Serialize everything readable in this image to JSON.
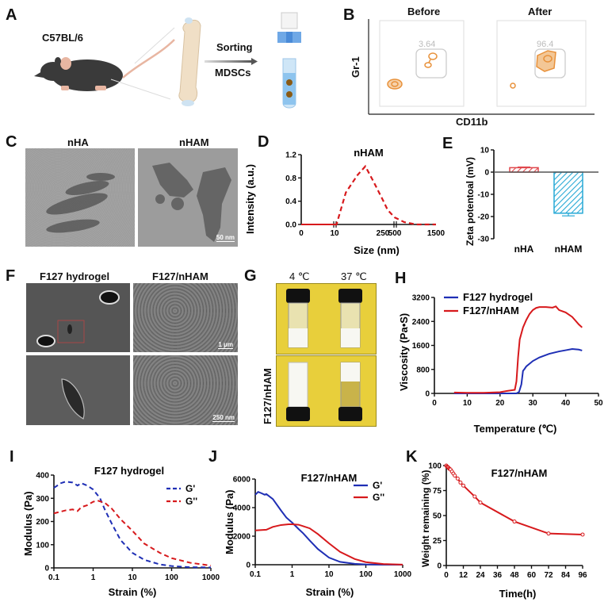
{
  "panels": {
    "A": {
      "label": "A",
      "strain": "C57BL/6",
      "arrow_top": "Sorting",
      "arrow_bottom": "MDSCs",
      "icons": [
        "mouse-illustration",
        "femur-bone-illustration",
        "cell-strainer-illustration",
        "test-tube-illustration"
      ]
    },
    "B": {
      "label": "B",
      "titles": [
        "Before",
        "After"
      ],
      "gate_values": [
        "3.64",
        "96.4"
      ],
      "ylabel": "Gr-1",
      "xlabel": "CD11b",
      "color": "#e8913a"
    },
    "C": {
      "label": "C",
      "titles": [
        "nHA",
        "nHAM"
      ],
      "scale_bar": "50 nm"
    },
    "D": {
      "label": "D"
    },
    "E": {
      "label": "E"
    },
    "F": {
      "label": "F",
      "titles": [
        "F127 hydrogel",
        "F127/nHAM"
      ],
      "scale_bars": [
        "1 μm",
        "250 nm"
      ]
    },
    "G": {
      "label": "G",
      "titles": [
        "4 ℃",
        "37 ℃"
      ],
      "side_label": "F127/nHAM"
    },
    "H": {
      "label": "H"
    },
    "I": {
      "label": "I"
    },
    "J": {
      "label": "J"
    },
    "K": {
      "label": "K"
    }
  },
  "chart_data": [
    {
      "id": "D",
      "type": "line",
      "title": "nHAM",
      "xlabel": "Size (nm)",
      "ylabel": "Intensity (a.u.)",
      "x_tick_labels": [
        "0",
        "10",
        "250",
        "500",
        "1500"
      ],
      "y_ticks": [
        0.0,
        0.4,
        0.8,
        1.2
      ],
      "y_tick_labels": [
        "0.0",
        "0.4",
        "0.8",
        "1.2"
      ],
      "ylim": [
        0,
        1.2
      ],
      "axis_breaks": true,
      "series": [
        {
          "name": "nHAM",
          "color": "#d7191c",
          "style": "dashed",
          "x": [
            0,
            10,
            12,
            60,
            120,
            160,
            200,
            250,
            350,
            500,
            700,
            1000,
            1500
          ],
          "y": [
            0,
            0,
            0,
            0.55,
            0.85,
            1.0,
            0.75,
            0.42,
            0.25,
            0.12,
            0.04,
            0.0,
            0.0
          ]
        }
      ]
    },
    {
      "id": "E",
      "type": "bar",
      "categories": [
        "nHA",
        "nHAM"
      ],
      "values": [
        2,
        -18.5
      ],
      "errors": [
        0.3,
        1.2
      ],
      "colors": [
        "#e0474c",
        "#27a9d6"
      ],
      "hatched": true,
      "ylabel": "Zeta potentoal (mV)",
      "ylim": [
        -30,
        10
      ],
      "y_ticks": [
        10,
        0,
        -10,
        -20,
        -30
      ],
      "y_tick_labels": [
        "10",
        "0",
        "-10",
        "-20",
        "-30"
      ]
    },
    {
      "id": "H",
      "type": "line",
      "xlabel": "Temperature (℃)",
      "ylabel": "Viscosity (Pa•S)",
      "xlim": [
        0,
        50
      ],
      "ylim": [
        0,
        3200
      ],
      "x_ticks": [
        0,
        10,
        20,
        30,
        40,
        50
      ],
      "x_tick_labels": [
        "0",
        "10",
        "20",
        "30",
        "40",
        "50"
      ],
      "y_ticks": [
        0,
        800,
        1600,
        2400,
        3200
      ],
      "y_tick_labels": [
        "0",
        "800",
        "1600",
        "2400",
        "3200"
      ],
      "legend": "top-left",
      "series": [
        {
          "name": "F127 hydrogel",
          "color": "#1f2fb5",
          "x": [
            6,
            10,
            20,
            25,
            25.8,
            26.5,
            27,
            27.5,
            28,
            30,
            32,
            35,
            38,
            40,
            42,
            44,
            45
          ],
          "y": [
            0,
            0,
            0,
            0,
            50,
            300,
            750,
            820,
            900,
            1080,
            1200,
            1320,
            1400,
            1440,
            1480,
            1460,
            1430
          ]
        },
        {
          "name": "F127/nHAM",
          "color": "#d7191c",
          "x": [
            6,
            10,
            15,
            20,
            22,
            24.5,
            25,
            25.5,
            26,
            27,
            28,
            29,
            30,
            31,
            32,
            34,
            36,
            37,
            38,
            40,
            42,
            44,
            45
          ],
          "y": [
            30,
            20,
            20,
            40,
            80,
            120,
            400,
            1200,
            1800,
            2200,
            2450,
            2650,
            2780,
            2850,
            2880,
            2880,
            2860,
            2900,
            2780,
            2700,
            2550,
            2300,
            2200
          ]
        }
      ]
    },
    {
      "id": "I",
      "type": "line",
      "title": "F127 hydrogel",
      "xlabel": "Strain (%)",
      "ylabel": "Modulus (Pa)",
      "xscale": "log",
      "xlim": [
        0.1,
        1000
      ],
      "ylim": [
        0,
        400
      ],
      "x_tick_labels": [
        "0.1",
        "1",
        "10",
        "100",
        "1000"
      ],
      "y_ticks": [
        0,
        100,
        200,
        300,
        400
      ],
      "y_tick_labels": [
        "0",
        "100",
        "200",
        "300",
        "400"
      ],
      "legend": "top-right",
      "series": [
        {
          "name": "G'",
          "color": "#1f2fb5",
          "style": "dashed",
          "x": [
            0.1,
            0.15,
            0.2,
            0.3,
            0.4,
            0.5,
            0.7,
            1,
            1.5,
            2,
            3,
            5,
            10,
            20,
            50,
            100,
            300,
            1000
          ],
          "y": [
            345,
            365,
            372,
            368,
            355,
            365,
            355,
            338,
            300,
            250,
            190,
            120,
            65,
            35,
            15,
            8,
            3,
            2
          ]
        },
        {
          "name": "G''",
          "color": "#d7191c",
          "style": "dashed",
          "x": [
            0.1,
            0.2,
            0.3,
            0.4,
            0.5,
            0.7,
            1,
            1.3,
            2,
            3,
            5,
            10,
            20,
            50,
            100,
            300,
            1000
          ],
          "y": [
            235,
            248,
            252,
            245,
            262,
            270,
            285,
            290,
            280,
            255,
            210,
            160,
            105,
            65,
            42,
            22,
            10
          ]
        }
      ]
    },
    {
      "id": "J",
      "type": "line",
      "title": "F127/nHAM",
      "xlabel": "Strain (%)",
      "ylabel": "Modulus (Pa)",
      "xscale": "log",
      "xlim": [
        0.1,
        1000
      ],
      "ylim": [
        0,
        6000
      ],
      "x_tick_labels": [
        "0.1",
        "1",
        "10",
        "100",
        "1000"
      ],
      "y_ticks": [
        0,
        2000,
        4000,
        6000
      ],
      "y_tick_labels": [
        "0",
        "2000",
        "4000",
        "6000"
      ],
      "legend": "top-right",
      "series": [
        {
          "name": "G'",
          "color": "#1f2fb5",
          "style": "solid",
          "x": [
            0.1,
            0.12,
            0.15,
            0.18,
            0.2,
            0.3,
            0.5,
            0.7,
            1,
            1.5,
            2,
            3,
            5,
            10,
            20,
            50,
            100,
            300,
            1000
          ],
          "y": [
            4900,
            5100,
            5000,
            4900,
            4950,
            4600,
            3800,
            3300,
            2950,
            2500,
            2200,
            1700,
            1100,
            500,
            200,
            60,
            20,
            5,
            0
          ]
        },
        {
          "name": "G''",
          "color": "#d7191c",
          "style": "solid",
          "x": [
            0.1,
            0.2,
            0.3,
            0.5,
            0.8,
            1,
            1.5,
            2,
            3,
            5,
            10,
            20,
            50,
            100,
            300,
            1000
          ],
          "y": [
            2400,
            2450,
            2650,
            2780,
            2830,
            2830,
            2800,
            2700,
            2550,
            2150,
            1500,
            900,
            400,
            180,
            50,
            10
          ]
        }
      ]
    },
    {
      "id": "K",
      "type": "line",
      "title": "F127/nHAM",
      "xlabel": "Time(h)",
      "ylabel": "Weight remaining (%)",
      "xlim": [
        0,
        96
      ],
      "ylim": [
        0,
        100
      ],
      "x_ticks": [
        0,
        12,
        24,
        36,
        48,
        60,
        72,
        84,
        96
      ],
      "x_tick_labels": [
        "0",
        "12",
        "24",
        "36",
        "48",
        "60",
        "72",
        "84",
        "96"
      ],
      "y_ticks": [
        0,
        25,
        50,
        75,
        100
      ],
      "y_tick_labels": [
        "0",
        "25",
        "50",
        "75",
        "100"
      ],
      "series": [
        {
          "name": "F127/nHAM",
          "color": "#d7191c",
          "markers": "open-circle",
          "x": [
            0,
            0.5,
            1,
            1.5,
            2,
            2.5,
            3,
            4,
            5,
            6,
            8,
            10,
            12,
            20,
            24,
            48,
            72,
            96
          ],
          "y": [
            100,
            99,
            98.5,
            98,
            97,
            96.5,
            96,
            94,
            92,
            90,
            87,
            83,
            80,
            69,
            63,
            44,
            32,
            31
          ]
        }
      ]
    }
  ]
}
